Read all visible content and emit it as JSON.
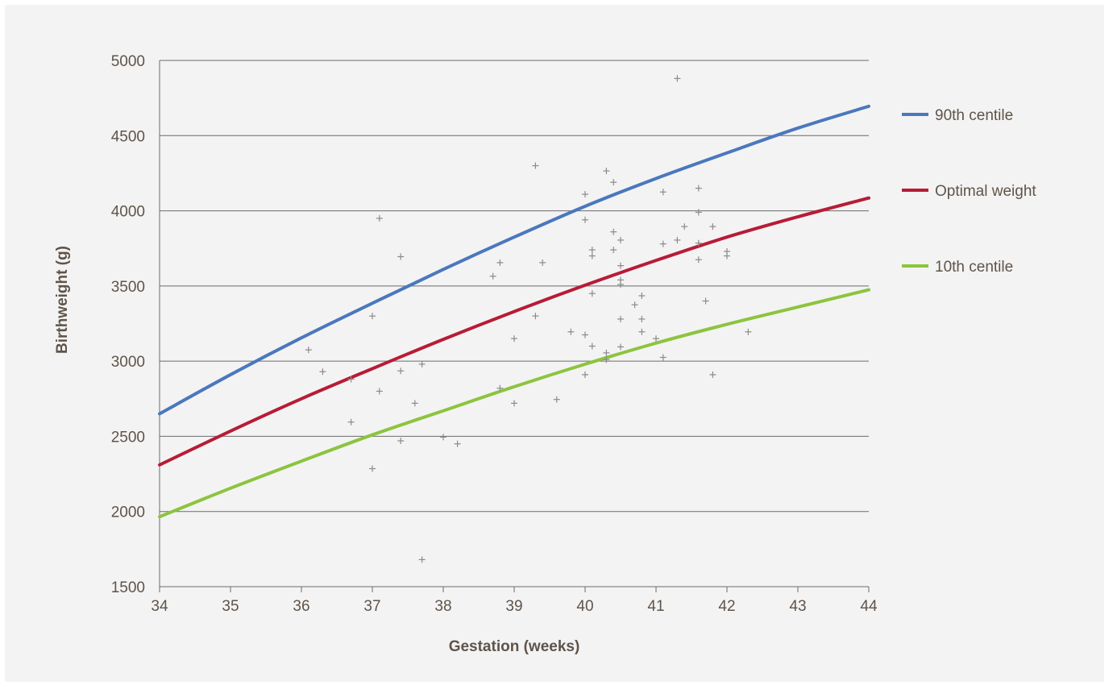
{
  "chart_data": {
    "type": "line",
    "title": "",
    "xlabel": "Gestation (weeks)",
    "ylabel": "Birthweight (g)",
    "xlim": [
      34,
      44
    ],
    "ylim": [
      1500,
      5000
    ],
    "xticks": [
      34,
      35,
      36,
      37,
      38,
      39,
      40,
      41,
      42,
      43,
      44
    ],
    "yticks": [
      1500,
      2000,
      2500,
      3000,
      3500,
      4000,
      4500,
      5000
    ],
    "grid": "horizontal",
    "legend_position": "right",
    "x": [
      34,
      35,
      36,
      37,
      38,
      39,
      40,
      41,
      42,
      43,
      44
    ],
    "series": [
      {
        "name": "90th centile",
        "color": "#4a78bd",
        "values": [
          2650,
          2910,
          3155,
          3385,
          3610,
          3825,
          4030,
          4215,
          4385,
          4550,
          4695
        ]
      },
      {
        "name": "Optimal weight",
        "color": "#b71c36",
        "values": [
          2310,
          2535,
          2750,
          2950,
          3145,
          3330,
          3505,
          3670,
          3825,
          3960,
          4085
        ]
      },
      {
        "name": "10th centile",
        "color": "#8cc43f",
        "values": [
          1965,
          2155,
          2335,
          2510,
          2670,
          2830,
          2980,
          3120,
          3245,
          3360,
          3475
        ]
      }
    ],
    "scatter": {
      "marker": "+",
      "color": "#8a8a8a",
      "points": [
        [
          36.1,
          3075
        ],
        [
          36.3,
          2930
        ],
        [
          36.7,
          2880
        ],
        [
          36.7,
          2595
        ],
        [
          37.0,
          3300
        ],
        [
          37.0,
          2285
        ],
        [
          37.1,
          3950
        ],
        [
          37.1,
          2800
        ],
        [
          37.4,
          3695
        ],
        [
          37.4,
          2935
        ],
        [
          37.4,
          2470
        ],
        [
          37.6,
          2720
        ],
        [
          37.7,
          2980
        ],
        [
          37.7,
          1680
        ],
        [
          38.0,
          2495
        ],
        [
          38.2,
          2450
        ],
        [
          38.7,
          3565
        ],
        [
          38.8,
          3655
        ],
        [
          38.8,
          2820
        ],
        [
          39.0,
          3150
        ],
        [
          39.0,
          2720
        ],
        [
          39.3,
          4300
        ],
        [
          39.3,
          3300
        ],
        [
          39.4,
          3655
        ],
        [
          39.6,
          2745
        ],
        [
          39.8,
          3195
        ],
        [
          40.0,
          4110
        ],
        [
          40.0,
          3940
        ],
        [
          40.0,
          3175
        ],
        [
          40.0,
          2910
        ],
        [
          40.1,
          3740
        ],
        [
          40.1,
          3700
        ],
        [
          40.1,
          3450
        ],
        [
          40.1,
          3100
        ],
        [
          40.3,
          4265
        ],
        [
          40.3,
          3055
        ],
        [
          40.3,
          3010
        ],
        [
          40.4,
          4190
        ],
        [
          40.4,
          3860
        ],
        [
          40.4,
          3740
        ],
        [
          40.5,
          3805
        ],
        [
          40.5,
          3635
        ],
        [
          40.5,
          3540
        ],
        [
          40.5,
          3510
        ],
        [
          40.5,
          3280
        ],
        [
          40.5,
          3095
        ],
        [
          40.7,
          3375
        ],
        [
          40.8,
          3435
        ],
        [
          40.8,
          3280
        ],
        [
          40.8,
          3195
        ],
        [
          41.0,
          3150
        ],
        [
          41.1,
          4125
        ],
        [
          41.1,
          3780
        ],
        [
          41.1,
          3025
        ],
        [
          41.3,
          4880
        ],
        [
          41.3,
          3805
        ],
        [
          41.4,
          3895
        ],
        [
          41.6,
          4150
        ],
        [
          41.6,
          3990
        ],
        [
          41.6,
          3785
        ],
        [
          41.6,
          3675
        ],
        [
          41.7,
          3400
        ],
        [
          41.8,
          3895
        ],
        [
          41.8,
          2910
        ],
        [
          42.0,
          3730
        ],
        [
          42.0,
          3700
        ],
        [
          42.3,
          3195
        ]
      ]
    }
  }
}
